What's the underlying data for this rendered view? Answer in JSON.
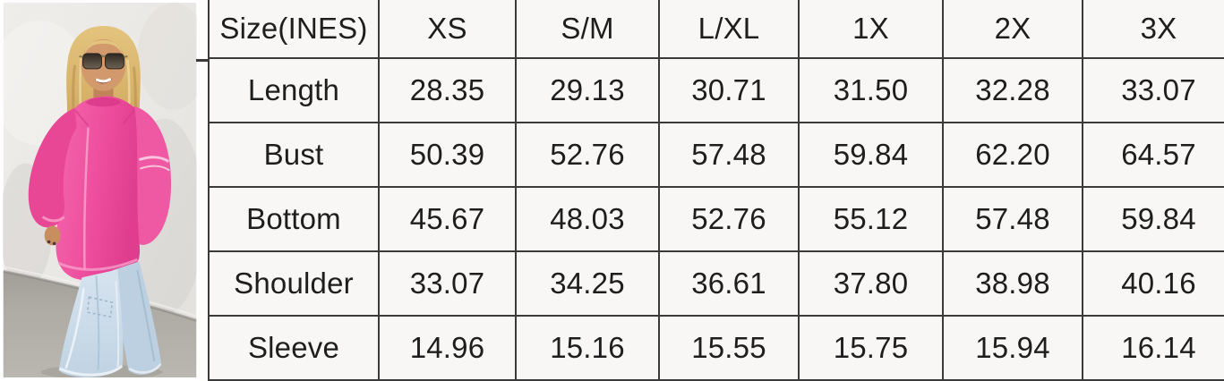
{
  "photo": {
    "description": "Model wearing an oversized hot pink hoodie and light-wash wide-leg jeans, standing against a white wall on a gray concrete floor",
    "colors": {
      "sweatshirt": "#ee4f9e",
      "sweatshirt_shadow": "#d83787",
      "jeans": "#cadcea",
      "jeans_shadow": "#a9c2d6",
      "wall": "#eae8e4",
      "floor": "#aeaba4",
      "hair": "#d7b269",
      "hair_highlight": "#ecd9a4",
      "skin": "#cf9468",
      "sunglasses": "#3a332c"
    }
  },
  "chart_data": {
    "type": "table",
    "title": "Size(INES)",
    "columns": [
      "XS",
      "S/M",
      "L/XL",
      "1X",
      "2X",
      "3X"
    ],
    "rows": [
      {
        "label": "Length",
        "values": [
          "28.35",
          "29.13",
          "30.71",
          "31.50",
          "32.28",
          "33.07"
        ]
      },
      {
        "label": "Bust",
        "values": [
          "50.39",
          "52.76",
          "57.48",
          "59.84",
          "62.20",
          "64.57"
        ]
      },
      {
        "label": "Bottom",
        "values": [
          "45.67",
          "48.03",
          "52.76",
          "55.12",
          "57.48",
          "59.84"
        ]
      },
      {
        "label": "Shoulder",
        "values": [
          "33.07",
          "34.25",
          "36.61",
          "37.80",
          "38.98",
          "40.16"
        ]
      },
      {
        "label": "Sleeve",
        "values": [
          "14.96",
          "15.16",
          "15.55",
          "15.75",
          "15.94",
          "16.14"
        ]
      }
    ],
    "layout": {
      "border_color": "#3a3a3a",
      "cell_background": "#f8f7f5",
      "text_color": "#1e1e1e",
      "grid": true,
      "cropped_edges": [
        "top",
        "right",
        "bottom"
      ]
    }
  }
}
